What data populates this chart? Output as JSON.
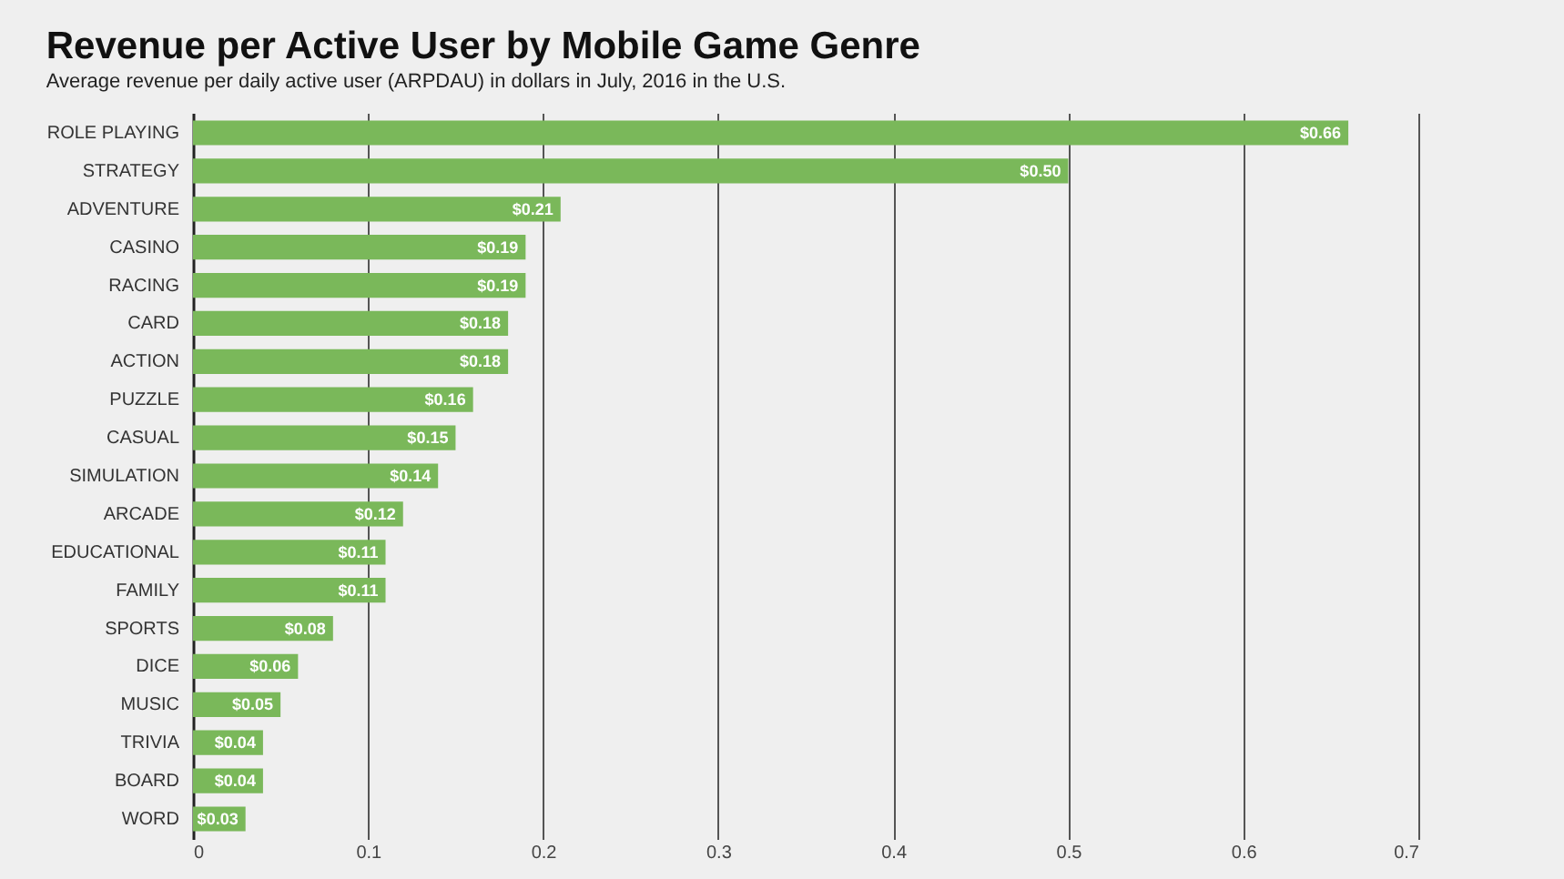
{
  "chart_data": {
    "type": "bar",
    "orientation": "horizontal",
    "title": "Revenue per Active User by Mobile Game Genre",
    "subtitle": "Average revenue per daily active user (ARPDAU) in dollars in July, 2016 in the U.S.",
    "categories": [
      "ROLE PLAYING",
      "STRATEGY",
      "ADVENTURE",
      "CASINO",
      "RACING",
      "CARD",
      "ACTION",
      "PUZZLE",
      "CASUAL",
      "SIMULATION",
      "ARCADE",
      "EDUCATIONAL",
      "FAMILY",
      "SPORTS",
      "DICE",
      "MUSIC",
      "TRIVIA",
      "BOARD",
      "WORD"
    ],
    "values": [
      0.66,
      0.5,
      0.21,
      0.19,
      0.19,
      0.18,
      0.18,
      0.16,
      0.15,
      0.14,
      0.12,
      0.11,
      0.11,
      0.08,
      0.06,
      0.05,
      0.04,
      0.04,
      0.03
    ],
    "value_labels": [
      "$0.66",
      "$0.50",
      "$0.21",
      "$0.19",
      "$0.19",
      "$0.18",
      "$0.18",
      "$0.16",
      "$0.15",
      "$0.14",
      "$0.12",
      "$0.11",
      "$0.11",
      "$0.08",
      "$0.06",
      "$0.05",
      "$0.04",
      "$0.04",
      "$0.03"
    ],
    "color": "#7ab85a",
    "xlim": [
      0,
      0.7
    ],
    "xticks": [
      0,
      0.1,
      0.2,
      0.3,
      0.4,
      0.5,
      0.6,
      0.7
    ],
    "grid": "x"
  }
}
